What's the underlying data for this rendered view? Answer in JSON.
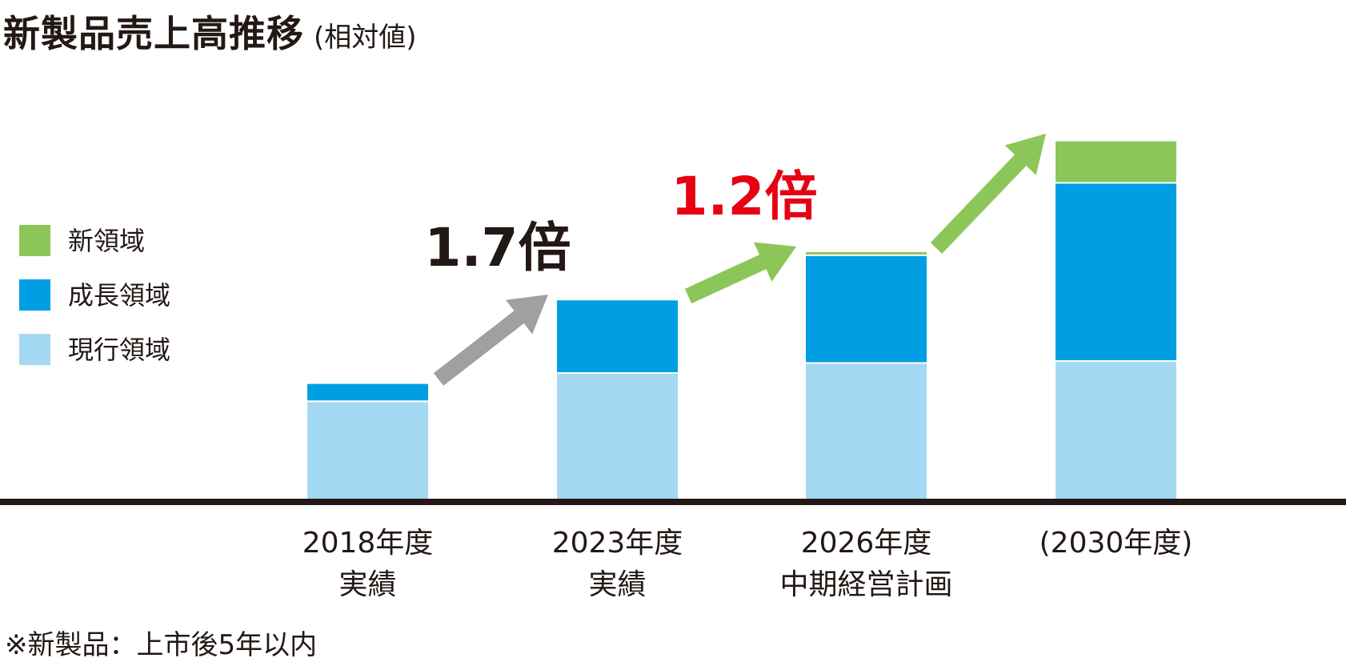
{
  "header": {
    "title": "新製品売上高推移",
    "subtitle": "(相対値)"
  },
  "footnote": "※新製品：上市後5年以内",
  "colors": {
    "current": "#a5d8f3",
    "growth": "#009fe3",
    "new": "#8cc659",
    "arrow_gray": "#a0a0a0",
    "arrow_green": "#8cc659",
    "label_black": "#231815",
    "label_red": "#e60012",
    "axis": "#231815"
  },
  "chart_data": {
    "type": "bar",
    "stacked": true,
    "title": "新製品売上高推移",
    "subtitle": "(相対値)",
    "categories": [
      [
        "2018年度",
        "実績"
      ],
      [
        "2023年度",
        "実績"
      ],
      [
        "2026年度",
        "中期経営計画"
      ],
      [
        "(2030年度)"
      ]
    ],
    "series": [
      {
        "name": "現行領域",
        "color": "#a5d8f3",
        "values": [
          1.0,
          1.28,
          1.38,
          1.4
        ]
      },
      {
        "name": "成長領域",
        "color": "#009fe3",
        "values": [
          0.18,
          0.73,
          1.07,
          1.77
        ]
      },
      {
        "name": "新領域",
        "color": "#8cc659",
        "values": [
          0.0,
          0.0,
          0.04,
          0.42
        ]
      }
    ],
    "legend_order": [
      "新領域",
      "成長領域",
      "現行領域"
    ],
    "legend": "left",
    "ylim": [
      0,
      3.65
    ],
    "grid": false,
    "annotations": [
      {
        "text": "1.7倍",
        "from": 0,
        "to": 1,
        "arrow": "gray",
        "color": "#231815"
      },
      {
        "text": "1.2倍",
        "from": 1,
        "to": 2,
        "arrow": "green",
        "color": "#e60012"
      },
      {
        "text": "",
        "from": 2,
        "to": 3,
        "arrow": "green",
        "color": "#231815"
      }
    ]
  }
}
